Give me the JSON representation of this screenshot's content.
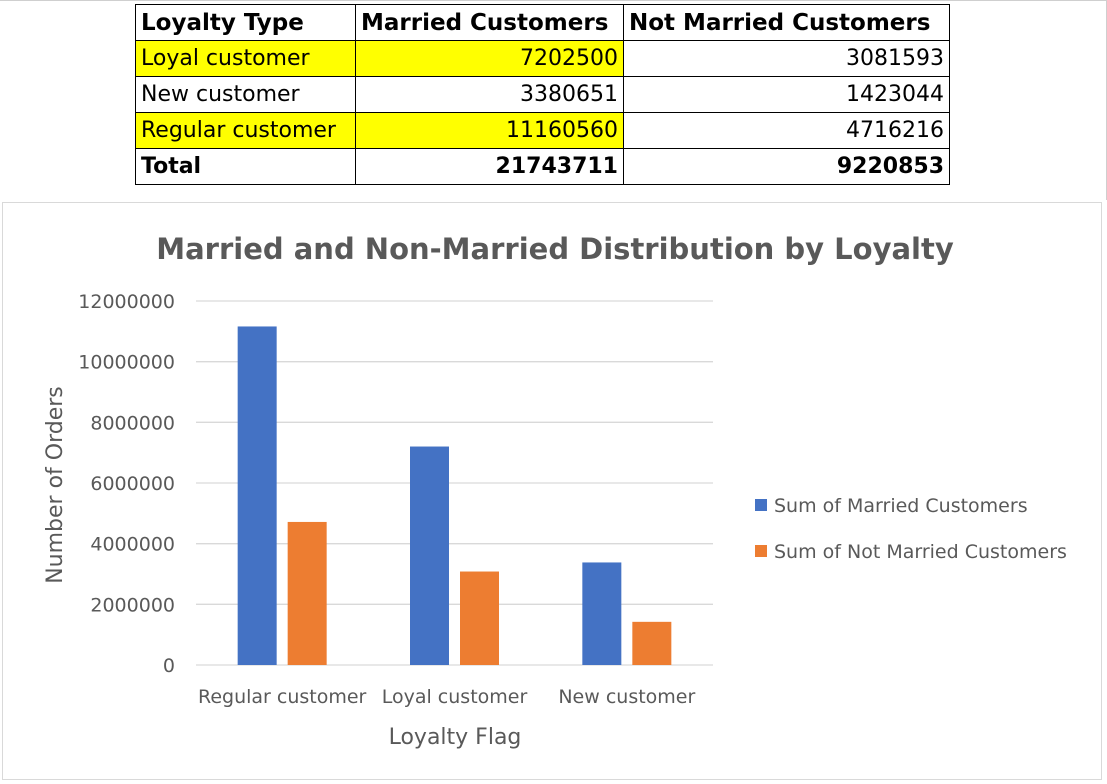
{
  "table": {
    "headers": [
      "Loyalty Type",
      "Married Customers",
      "Not Married Customers"
    ],
    "rows": [
      {
        "label": "Loyal customer",
        "married": "7202500",
        "not_married": "3081593"
      },
      {
        "label": "New customer",
        "married": "3380651",
        "not_married": "1423044"
      },
      {
        "label": "Regular customer",
        "married": "11160560",
        "not_married": "4716216"
      }
    ],
    "total": {
      "label": "Total",
      "married": "21743711",
      "not_married": "9220853"
    },
    "highlight_color": "#ffff00"
  },
  "chart_data": {
    "type": "bar",
    "title": "Married and Non-Married Distribution by Loyalty",
    "xlabel": "Loyalty Flag",
    "ylabel": "Number of Orders",
    "categories": [
      "Regular customer",
      "Loyal customer",
      "New customer"
    ],
    "series": [
      {
        "name": "Sum of Married Customers",
        "color": "#4472c4",
        "values": [
          11160560,
          7202500,
          3380651
        ]
      },
      {
        "name": "Sum of Not Married Customers",
        "color": "#ed7d31",
        "values": [
          4716216,
          3081593,
          1423044
        ]
      }
    ],
    "ylim": [
      0,
      12000000
    ],
    "yticks": [
      0,
      2000000,
      4000000,
      6000000,
      8000000,
      10000000,
      12000000
    ],
    "grid": true,
    "legend": "right"
  }
}
